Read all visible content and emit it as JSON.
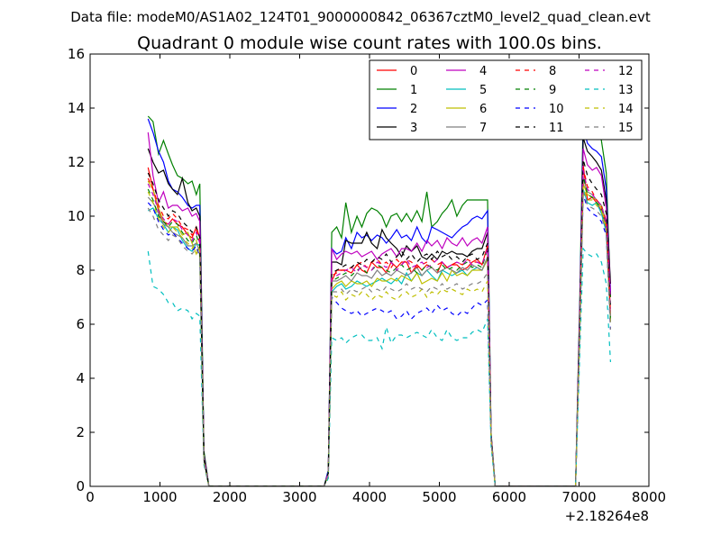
{
  "header": {
    "data_file": "Data file: modeM0/AS1A02_124T01_9000000842_06367cztM0_level2_quad_clean.evt"
  },
  "chart_data": {
    "type": "line",
    "title": "Quadrant 0 module wise count rates with 100.0s bins.",
    "xlabel": "",
    "ylabel": "",
    "xlim": [
      0,
      8000
    ],
    "ylim": [
      0,
      16
    ],
    "x_offset_label": "+2.18264e8",
    "xticks": [
      0,
      1000,
      2000,
      3000,
      4000,
      5000,
      6000,
      7000,
      8000
    ],
    "yticks": [
      0,
      2,
      4,
      6,
      8,
      10,
      12,
      14,
      16
    ],
    "legend_position": "top-right",
    "x": [
      830,
      900,
      980,
      1050,
      1120,
      1180,
      1250,
      1320,
      1400,
      1460,
      1520,
      1570,
      1630,
      1700,
      1760,
      3350,
      3410,
      3460,
      3530,
      3600,
      3660,
      3740,
      3820,
      3890,
      3960,
      4030,
      4110,
      4180,
      4240,
      4310,
      4390,
      4460,
      4530,
      4600,
      4680,
      4750,
      4820,
      4890,
      4970,
      5040,
      5110,
      5180,
      5250,
      5330,
      5400,
      5470,
      5540,
      5610,
      5690,
      5740,
      5800,
      5870,
      6950,
      7010,
      7060,
      7120,
      7190,
      7250,
      7320,
      7390,
      7450
    ],
    "series": [
      {
        "name": "0",
        "color": "#ff0000",
        "dash": false,
        "values": [
          11.8,
          11.0,
          10.2,
          9.8,
          9.7,
          9.9,
          9.7,
          9.6,
          9.3,
          9.2,
          9.6,
          9.2,
          1.0,
          0,
          0,
          0,
          0.5,
          7.6,
          8.0,
          8.0,
          8.0,
          7.9,
          8.2,
          8.0,
          7.9,
          8.3,
          8.1,
          8.1,
          7.9,
          8.3,
          8.1,
          8.3,
          8.3,
          7.9,
          8.2,
          8.0,
          8.2,
          8.1,
          7.9,
          8.3,
          8.1,
          8.2,
          8.2,
          8.0,
          8.1,
          8.3,
          8.4,
          8.2,
          8.9,
          1.8,
          0,
          0,
          0,
          6.0,
          11.9,
          10.6,
          10.7,
          10.5,
          10.2,
          9.5,
          6.3
        ]
      },
      {
        "name": "1",
        "color": "#008000",
        "dash": false,
        "values": [
          13.7,
          13.5,
          12.3,
          12.8,
          12.3,
          11.9,
          11.5,
          11.4,
          11.2,
          11.3,
          10.8,
          11.2,
          1.3,
          0,
          0,
          0,
          0.6,
          9.4,
          9.6,
          9.2,
          10.5,
          9.4,
          10.0,
          9.6,
          10.1,
          10.3,
          10.2,
          10.0,
          9.6,
          10.0,
          10.1,
          9.8,
          10.1,
          9.8,
          10.2,
          9.8,
          10.9,
          9.6,
          9.8,
          10.1,
          10.3,
          10.6,
          10.0,
          10.4,
          10.6,
          10.6,
          10.6,
          10.6,
          10.6,
          2.0,
          0,
          0,
          0,
          6.9,
          13.8,
          14.0,
          13.6,
          13.2,
          12.8,
          11.6,
          7.0
        ]
      },
      {
        "name": "2",
        "color": "#0000ff",
        "dash": false,
        "values": [
          13.6,
          13.1,
          12.4,
          12.0,
          11.3,
          11.0,
          10.9,
          10.7,
          10.4,
          10.3,
          10.4,
          10.4,
          1.2,
          0,
          0,
          0,
          0.6,
          8.8,
          8.6,
          8.7,
          9.2,
          8.8,
          9.4,
          9.2,
          9.3,
          9.1,
          9.3,
          9.2,
          9.0,
          9.2,
          9.5,
          9.2,
          9.3,
          9.1,
          9.6,
          9.2,
          9.0,
          9.6,
          9.5,
          9.4,
          9.3,
          9.2,
          9.4,
          9.6,
          9.7,
          9.9,
          10.0,
          9.9,
          10.2,
          1.9,
          0,
          0,
          0,
          6.6,
          13.3,
          12.7,
          12.5,
          12.4,
          12.2,
          11.0,
          7.2
        ]
      },
      {
        "name": "3",
        "color": "#000000",
        "dash": false,
        "values": [
          12.5,
          12.0,
          11.6,
          11.7,
          11.2,
          11.0,
          10.8,
          11.4,
          10.5,
          10.2,
          10.3,
          10.0,
          1.2,
          0,
          0,
          0,
          0.5,
          8.3,
          8.3,
          8.2,
          9.1,
          9.0,
          9.0,
          9.0,
          9.4,
          9.0,
          8.8,
          9.5,
          9.2,
          9.0,
          8.8,
          8.5,
          8.9,
          8.7,
          8.9,
          8.5,
          8.4,
          8.6,
          8.4,
          8.7,
          8.6,
          8.7,
          8.6,
          8.6,
          8.5,
          8.7,
          8.8,
          8.8,
          9.4,
          1.9,
          0,
          0,
          0,
          6.4,
          12.9,
          12.4,
          12.2,
          12.0,
          11.7,
          10.6,
          7.5
        ]
      },
      {
        "name": "4",
        "color": "#bf00bf",
        "dash": false,
        "values": [
          13.1,
          11.5,
          10.5,
          10.9,
          10.3,
          10.4,
          10.4,
          10.2,
          10.3,
          10.0,
          10.1,
          9.8,
          1.1,
          0,
          0,
          0,
          0.5,
          8.8,
          8.4,
          8.6,
          8.7,
          8.6,
          8.7,
          8.5,
          8.6,
          8.7,
          8.4,
          8.6,
          8.7,
          8.8,
          8.5,
          8.8,
          8.8,
          8.7,
          9.0,
          8.7,
          9.1,
          8.9,
          9.1,
          8.8,
          9.2,
          9.0,
          8.9,
          9.2,
          8.9,
          9.1,
          9.2,
          9.0,
          9.6,
          1.9,
          0,
          0,
          0,
          6.4,
          12.5,
          11.9,
          11.7,
          11.8,
          11.5,
          10.3,
          7.1
        ]
      },
      {
        "name": "5",
        "color": "#00bfbf",
        "dash": false,
        "values": [
          10.2,
          10.3,
          9.9,
          9.7,
          9.4,
          9.6,
          9.5,
          9.1,
          8.8,
          8.7,
          9.0,
          8.9,
          1.0,
          0,
          0,
          0,
          0.5,
          7.2,
          7.4,
          7.5,
          7.3,
          7.4,
          7.6,
          7.5,
          7.4,
          7.5,
          7.6,
          7.7,
          7.6,
          7.5,
          7.7,
          7.5,
          7.9,
          7.6,
          7.9,
          7.8,
          8.0,
          7.8,
          7.6,
          8.0,
          7.9,
          7.8,
          7.9,
          8.0,
          7.8,
          8.0,
          8.1,
          8.0,
          8.4,
          1.8,
          0,
          0,
          0,
          5.8,
          11.0,
          10.5,
          10.4,
          10.5,
          10.1,
          9.4,
          6.1
        ]
      },
      {
        "name": "6",
        "color": "#bfbf00",
        "dash": false,
        "values": [
          11.3,
          11.0,
          10.3,
          9.8,
          9.6,
          9.6,
          9.6,
          9.3,
          9.4,
          9.0,
          8.6,
          8.9,
          1.0,
          0,
          0,
          0,
          0.5,
          7.3,
          7.5,
          7.6,
          7.4,
          7.6,
          7.5,
          7.5,
          7.6,
          7.4,
          7.7,
          7.6,
          7.6,
          7.7,
          7.6,
          7.8,
          7.7,
          7.6,
          7.9,
          7.5,
          7.6,
          7.7,
          7.6,
          7.9,
          7.6,
          8.0,
          7.8,
          7.9,
          7.8,
          8.0,
          8.0,
          8.0,
          8.4,
          1.8,
          0,
          0,
          0,
          5.9,
          11.2,
          10.8,
          10.7,
          10.6,
          10.3,
          9.6,
          6.1
        ]
      },
      {
        "name": "7",
        "color": "#808080",
        "dash": false,
        "values": [
          10.7,
          10.5,
          10.1,
          9.7,
          9.6,
          9.4,
          9.3,
          9.2,
          8.9,
          8.9,
          9.0,
          8.7,
          1.0,
          0,
          0,
          0,
          0.5,
          7.6,
          7.6,
          7.7,
          7.8,
          7.6,
          7.9,
          7.8,
          7.8,
          7.7,
          8.0,
          7.8,
          7.9,
          7.8,
          8.0,
          7.9,
          7.8,
          7.9,
          8.1,
          7.8,
          8.0,
          8.1,
          7.9,
          8.0,
          8.1,
          8.0,
          7.9,
          8.1,
          8.0,
          8.2,
          8.1,
          8.0,
          8.5,
          1.8,
          0,
          0,
          0,
          6.0,
          11.4,
          10.9,
          10.8,
          10.6,
          10.4,
          9.8,
          6.2
        ]
      },
      {
        "name": "8",
        "color": "#ff0000",
        "dash": true,
        "values": [
          11.4,
          11.0,
          10.4,
          10.0,
          9.9,
          10.1,
          9.9,
          9.6,
          9.5,
          9.3,
          9.5,
          9.0,
          1.0,
          0,
          0,
          0,
          0.5,
          7.8,
          7.9,
          8.0,
          8.0,
          8.1,
          8.2,
          8.3,
          8.1,
          8.3,
          8.4,
          8.2,
          8.3,
          8.1,
          8.4,
          8.2,
          8.4,
          8.3,
          8.1,
          8.2,
          8.3,
          8.4,
          8.2,
          8.3,
          8.1,
          8.2,
          8.3,
          8.2,
          8.4,
          8.3,
          8.3,
          8.2,
          8.9,
          1.8,
          0,
          0,
          0,
          6.0,
          11.8,
          11.1,
          10.9,
          10.6,
          10.4,
          9.8,
          6.4
        ]
      },
      {
        "name": "9",
        "color": "#008000",
        "dash": true,
        "values": [
          11.0,
          10.6,
          10.0,
          9.8,
          9.6,
          9.8,
          9.7,
          9.4,
          9.1,
          9.0,
          9.3,
          8.9,
          1.0,
          0,
          0,
          0,
          0.5,
          7.6,
          7.7,
          7.8,
          7.9,
          7.8,
          8.0,
          8.1,
          7.9,
          8.0,
          8.2,
          8.1,
          8.0,
          7.9,
          8.1,
          8.2,
          8.0,
          8.1,
          7.9,
          8.0,
          8.2,
          8.1,
          8.0,
          8.2,
          8.0,
          8.1,
          8.0,
          8.2,
          8.3,
          8.1,
          8.2,
          8.1,
          8.8,
          1.8,
          0,
          0,
          0,
          5.9,
          11.5,
          10.8,
          10.7,
          10.5,
          10.3,
          9.6,
          6.2
        ]
      },
      {
        "name": "10",
        "color": "#0000ff",
        "dash": true,
        "values": [
          10.5,
          10.3,
          9.8,
          9.5,
          9.3,
          9.4,
          9.2,
          9.0,
          8.8,
          8.7,
          8.9,
          8.5,
          0.9,
          0,
          0,
          0,
          0.4,
          7.0,
          6.8,
          6.6,
          6.5,
          6.4,
          6.5,
          6.3,
          6.4,
          6.5,
          6.6,
          6.5,
          6.4,
          6.5,
          6.2,
          6.3,
          6.5,
          6.2,
          6.4,
          6.5,
          6.6,
          6.4,
          6.7,
          6.5,
          6.6,
          6.4,
          6.3,
          6.5,
          6.4,
          6.6,
          6.8,
          6.7,
          6.9,
          1.7,
          0,
          0,
          0,
          5.6,
          10.8,
          10.3,
          10.1,
          10.0,
          9.8,
          9.3,
          5.8
        ]
      },
      {
        "name": "11",
        "color": "#000000",
        "dash": true,
        "values": [
          11.6,
          11.2,
          10.6,
          10.3,
          10.0,
          10.2,
          10.1,
          9.8,
          9.6,
          9.4,
          9.6,
          9.2,
          1.0,
          0,
          0,
          0,
          0.5,
          7.9,
          8.0,
          8.1,
          8.2,
          8.1,
          8.3,
          8.2,
          8.4,
          8.3,
          8.5,
          8.4,
          8.6,
          8.3,
          8.5,
          8.7,
          8.4,
          8.6,
          8.3,
          8.5,
          8.6,
          8.4,
          8.7,
          8.5,
          8.6,
          8.4,
          8.5,
          8.3,
          8.5,
          8.6,
          8.4,
          8.5,
          9.0,
          1.8,
          0,
          0,
          0,
          6.1,
          12.1,
          11.5,
          11.2,
          11.0,
          10.8,
          10.1,
          6.6
        ]
      },
      {
        "name": "12",
        "color": "#bf00bf",
        "dash": true,
        "values": [
          11.2,
          10.8,
          10.2,
          9.9,
          9.7,
          9.9,
          9.8,
          9.5,
          9.3,
          9.1,
          9.4,
          9.0,
          1.0,
          0,
          0,
          0,
          0.5,
          7.7,
          7.8,
          7.9,
          8.0,
          8.1,
          7.9,
          8.2,
          8.1,
          8.0,
          8.3,
          8.2,
          8.1,
          8.3,
          8.0,
          8.2,
          8.4,
          8.1,
          8.2,
          8.3,
          8.1,
          8.2,
          8.4,
          8.3,
          8.1,
          8.2,
          8.3,
          8.2,
          8.4,
          8.2,
          8.3,
          8.2,
          8.8,
          1.8,
          0,
          0,
          0,
          6.0,
          11.7,
          11.0,
          10.8,
          10.6,
          10.4,
          9.7,
          6.3
        ]
      },
      {
        "name": "13",
        "color": "#00bfbf",
        "dash": true,
        "values": [
          8.7,
          7.4,
          7.3,
          7.1,
          6.8,
          6.8,
          6.5,
          6.6,
          6.5,
          6.2,
          6.4,
          6.3,
          0.8,
          0,
          0,
          0,
          0.3,
          5.5,
          5.4,
          5.5,
          5.3,
          5.5,
          5.6,
          5.6,
          5.4,
          5.4,
          5.5,
          5.1,
          5.9,
          5.3,
          5.6,
          5.6,
          5.5,
          5.6,
          5.7,
          5.6,
          5.5,
          5.8,
          5.5,
          5.4,
          5.8,
          5.5,
          5.4,
          5.5,
          5.5,
          5.7,
          5.8,
          5.7,
          6.2,
          1.5,
          0,
          0,
          0,
          4.9,
          8.8,
          8.6,
          8.5,
          8.6,
          8.3,
          7.5,
          4.6
        ]
      },
      {
        "name": "14",
        "color": "#bfbf00",
        "dash": true,
        "values": [
          10.9,
          10.5,
          9.9,
          9.6,
          9.4,
          9.6,
          9.4,
          9.2,
          9.0,
          8.8,
          9.1,
          8.7,
          0.9,
          0,
          0,
          0,
          0.4,
          7.1,
          7.0,
          7.2,
          6.9,
          7.1,
          7.0,
          7.2,
          7.1,
          6.9,
          7.1,
          7.0,
          7.2,
          7.0,
          6.9,
          7.1,
          7.2,
          7.0,
          7.1,
          7.3,
          7.0,
          7.2,
          7.1,
          7.3,
          7.2,
          7.3,
          7.2,
          7.1,
          7.3,
          7.2,
          7.3,
          7.2,
          7.6,
          1.7,
          0,
          0,
          0,
          5.7,
          11.1,
          10.6,
          10.6,
          10.4,
          10.2,
          9.5,
          6.0
        ]
      },
      {
        "name": "15",
        "color": "#808080",
        "dash": true,
        "values": [
          10.3,
          10.0,
          9.5,
          9.3,
          9.1,
          9.3,
          9.2,
          8.9,
          8.7,
          8.6,
          8.8,
          8.5,
          0.9,
          0,
          0,
          0,
          0.4,
          7.2,
          7.2,
          7.3,
          7.1,
          7.3,
          7.2,
          7.3,
          7.4,
          7.2,
          7.3,
          7.2,
          7.4,
          7.3,
          7.2,
          7.3,
          7.5,
          7.3,
          7.4,
          7.3,
          7.2,
          7.4,
          7.3,
          7.5,
          7.3,
          7.4,
          7.5,
          7.3,
          7.4,
          7.5,
          7.5,
          7.6,
          7.9,
          1.7,
          0,
          0,
          0,
          5.7,
          10.9,
          10.4,
          10.3,
          10.2,
          10.0,
          9.4,
          5.8
        ]
      }
    ]
  }
}
